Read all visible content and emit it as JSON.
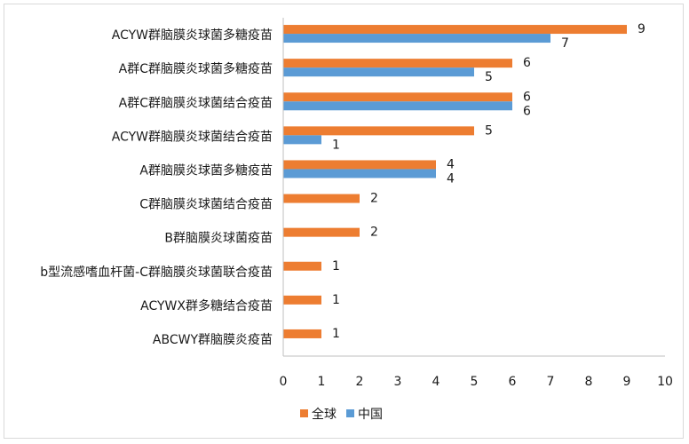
{
  "chart_data": {
    "type": "bar",
    "orientation": "horizontal",
    "title": "",
    "xlabel": "",
    "ylabel": "",
    "xlim": [
      0,
      10
    ],
    "x_ticks": [
      0,
      1,
      2,
      3,
      4,
      5,
      6,
      7,
      8,
      9,
      10
    ],
    "grid": false,
    "legend_position": "bottom",
    "categories": [
      "ACYW群脑膜炎球菌多糖疫苗",
      "A群C群脑膜炎球菌多糖疫苗",
      "A群C群脑膜炎球菌结合疫苗",
      "ACYW群脑膜炎球菌结合疫苗",
      "A群脑膜炎球菌多糖疫苗",
      "C群脑膜炎球菌结合疫苗",
      "B群脑膜炎球菌疫苗",
      "b型流感嗜血杆菌-C群脑膜炎球菌联合疫苗",
      "ACYWX群多糖结合疫苗",
      "ABCWY群脑膜炎疫苗"
    ],
    "series": [
      {
        "name": "全球",
        "color": "#ed7d31",
        "values": [
          9,
          6,
          6,
          5,
          4,
          2,
          2,
          1,
          1,
          1
        ]
      },
      {
        "name": "中国",
        "color": "#5b9bd5",
        "values": [
          7,
          5,
          6,
          1,
          4,
          null,
          null,
          null,
          null,
          null
        ]
      }
    ]
  },
  "colors": {
    "axis": "#bfbfbf",
    "frame_border": "#d9d9d9",
    "text": "#1a1a1a"
  }
}
